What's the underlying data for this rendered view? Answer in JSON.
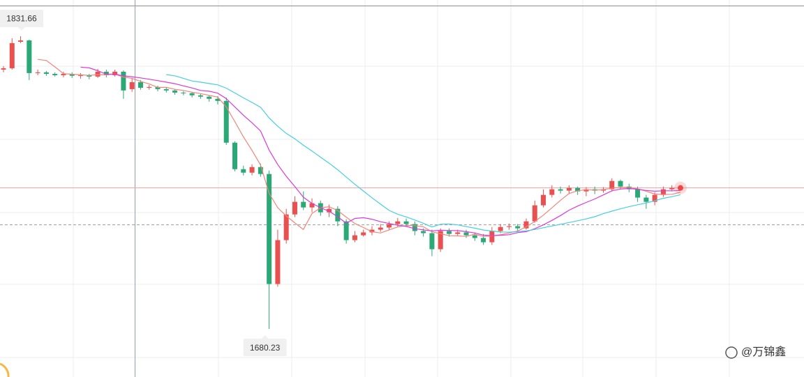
{
  "chart_data": {
    "type": "candlestick",
    "categories": [
      null,
      null,
      null,
      null,
      null,
      null,
      null,
      null,
      null,
      null,
      null,
      null,
      null,
      null,
      null,
      null,
      null,
      null,
      null,
      null,
      null,
      null,
      null,
      null,
      null,
      null,
      null,
      null,
      null,
      null,
      null,
      null,
      null,
      null,
      null,
      null,
      null,
      null,
      null,
      null,
      null,
      null,
      null,
      null,
      null,
      null,
      null,
      null,
      null,
      null,
      null,
      null,
      null,
      null,
      null,
      null,
      null,
      null,
      null,
      null,
      null,
      null,
      null,
      null,
      null,
      null,
      null,
      null,
      null,
      null,
      null,
      null,
      null,
      null,
      null,
      null,
      null,
      null,
      null,
      null
    ],
    "open": [
      1814.4,
      1815.1,
      1828.8,
      1829.5,
      1812.6,
      1813.0,
      1812.2,
      1811.5,
      1812.2,
      1811.2,
      1811.5,
      1810.8,
      1813.3,
      1811.5,
      1813.3,
      1804.3,
      1807.9,
      1805.0,
      1805.4,
      1804.3,
      1803.6,
      1802.5,
      1802.2,
      1801.1,
      1800.4,
      1799.3,
      1798.2,
      1776.6,
      1762.9,
      1761.1,
      1764.0,
      1760.4,
      1703.5,
      1726.2,
      1739.5,
      1746.0,
      1743.1,
      1745.3,
      1740.6,
      1742.4,
      1735.9,
      1726.2,
      1728.7,
      1730.2,
      1731.6,
      1732.7,
      1734.5,
      1735.9,
      1734.5,
      1730.9,
      1729.8,
      1721.5,
      1730.9,
      1729.4,
      1730.2,
      1728.7,
      1727.3,
      1725.1,
      1730.9,
      1733.0,
      1733.4,
      1732.3,
      1735.9,
      1744.2,
      1749.6,
      1752.5,
      1751.8,
      1753.2,
      1751.4,
      1752.5,
      1751.8,
      1752.5,
      1756.8,
      1753.9,
      1752.5,
      1748.2,
      1746.0,
      1749.6,
      1752.5,
      1752.8
    ],
    "high": [
      1816.2,
      1830.6,
      1831.66,
      1829.9,
      1814.4,
      1813.7,
      1813.0,
      1813.3,
      1813.0,
      1812.6,
      1812.2,
      1814.8,
      1814.4,
      1814.4,
      1814.0,
      1810.1,
      1809.0,
      1806.5,
      1806.1,
      1805.0,
      1804.3,
      1803.2,
      1802.9,
      1801.8,
      1801.1,
      1800.7,
      1800.0,
      1777.3,
      1764.7,
      1765.4,
      1765.8,
      1762.2,
      1731.6,
      1742.4,
      1748.9,
      1751.4,
      1747.8,
      1746.7,
      1744.6,
      1743.8,
      1737.0,
      1730.9,
      1731.6,
      1733.4,
      1734.5,
      1735.9,
      1737.7,
      1737.4,
      1735.9,
      1732.3,
      1731.6,
      1732.3,
      1732.3,
      1731.6,
      1731.6,
      1730.2,
      1729.4,
      1733.0,
      1734.5,
      1734.8,
      1734.5,
      1737.4,
      1746.7,
      1752.5,
      1754.6,
      1753.9,
      1754.6,
      1753.9,
      1753.6,
      1753.9,
      1753.6,
      1758.2,
      1757.5,
      1755.4,
      1753.9,
      1749.6,
      1751.0,
      1753.9,
      1754.6,
      1753.9
    ],
    "low": [
      1813.0,
      1814.4,
      1828.1,
      1809.0,
      1811.5,
      1811.2,
      1810.8,
      1810.4,
      1810.1,
      1809.7,
      1809.4,
      1810.1,
      1810.4,
      1810.8,
      1799.3,
      1802.9,
      1804.0,
      1804.0,
      1803.2,
      1802.5,
      1801.4,
      1801.1,
      1800.0,
      1799.3,
      1797.8,
      1796.4,
      1775.5,
      1761.8,
      1759.7,
      1759.7,
      1759.0,
      1680.23,
      1702.1,
      1724.4,
      1738.1,
      1741.7,
      1740.6,
      1738.8,
      1738.1,
      1733.4,
      1724.4,
      1725.1,
      1728.0,
      1728.7,
      1730.5,
      1731.6,
      1733.0,
      1733.0,
      1728.7,
      1728.0,
      1717.9,
      1720.1,
      1728.0,
      1728.4,
      1727.3,
      1725.8,
      1723.7,
      1723.7,
      1729.8,
      1731.6,
      1730.9,
      1731.6,
      1735.2,
      1743.1,
      1748.2,
      1750.3,
      1750.0,
      1749.6,
      1748.9,
      1750.0,
      1750.7,
      1751.4,
      1752.5,
      1751.0,
      1746.0,
      1742.4,
      1744.2,
      1748.5,
      1751.4,
      1752.5
    ],
    "close": [
      1815.1,
      1828.1,
      1829.5,
      1812.6,
      1813.0,
      1812.2,
      1811.5,
      1812.2,
      1811.2,
      1811.5,
      1810.8,
      1813.3,
      1811.5,
      1813.3,
      1803.6,
      1807.9,
      1805.0,
      1805.4,
      1804.3,
      1803.6,
      1802.5,
      1802.2,
      1801.1,
      1800.4,
      1799.3,
      1798.2,
      1776.6,
      1762.9,
      1761.1,
      1764.0,
      1760.4,
      1703.5,
      1726.2,
      1739.5,
      1746.0,
      1743.1,
      1745.3,
      1740.6,
      1742.4,
      1735.9,
      1726.2,
      1728.7,
      1730.2,
      1731.6,
      1732.7,
      1734.5,
      1735.9,
      1734.5,
      1730.9,
      1729.8,
      1721.5,
      1730.9,
      1729.4,
      1730.2,
      1728.7,
      1727.3,
      1725.1,
      1730.9,
      1733.0,
      1733.4,
      1732.3,
      1735.9,
      1744.2,
      1749.6,
      1752.5,
      1751.8,
      1753.2,
      1751.4,
      1752.5,
      1751.8,
      1752.5,
      1756.8,
      1753.9,
      1752.5,
      1748.2,
      1746.0,
      1749.6,
      1752.5,
      1753.2,
      1753.2
    ],
    "up_color": "#e8514f",
    "down_color": "#2aa876",
    "lines": [
      {
        "color": "#f0857a",
        "values": [
          null,
          null,
          null,
          null,
          1819.7,
          1819.1,
          1815.8,
          1812.3,
          1812.0,
          1811.7,
          1811.4,
          1811.8,
          1811.7,
          1812.1,
          1810.5,
          1809.9,
          1808.3,
          1807.0,
          1805.2,
          1805.2,
          1804.2,
          1803.6,
          1802.7,
          1802.0,
          1801.1,
          1800.2,
          1795.1,
          1787.5,
          1779.6,
          1772.6,
          1765.0,
          1750.4,
          1743.0,
          1738.7,
          1735.1,
          1731.7,
          1740.0,
          1742.9,
          1743.5,
          1741.5,
          1738.1,
          1734.8,
          1732.7,
          1730.5,
          1729.9,
          1731.5,
          1733.0,
          1733.8,
          1733.7,
          1733.1,
          1730.5,
          1729.5,
          1728.5,
          1728.4,
          1728.1,
          1729.3,
          1728.1,
          1728.4,
          1729.0,
          1729.9,
          1730.9,
          1733.1,
          1735.8,
          1739.1,
          1742.9,
          1746.8,
          1750.3,
          1751.7,
          1752.3,
          1752.1,
          1752.3,
          1753.0,
          1753.5,
          1753.5,
          1752.8,
          1751.5,
          1750.0,
          1749.8,
          1749.9,
          1750.9
        ]
      },
      {
        "color": "#d93ad9",
        "values": [
          null,
          null,
          null,
          null,
          null,
          null,
          null,
          null,
          null,
          1815.7,
          1815.3,
          1813.8,
          1812.0,
          1812.1,
          1811.1,
          1810.7,
          1810.1,
          1809.4,
          1808.7,
          1807.9,
          1807.1,
          1806.0,
          1804.9,
          1803.6,
          1803.2,
          1802.2,
          1799.4,
          1795.1,
          1790.8,
          1786.9,
          1782.6,
          1772.8,
          1765.3,
          1759.2,
          1753.9,
          1748.4,
          1745.2,
          1743.0,
          1741.1,
          1738.3,
          1734.9,
          1737.4,
          1737.8,
          1737.0,
          1735.7,
          1734.8,
          1733.9,
          1733.3,
          1732.1,
          1731.5,
          1731.0,
          1731.3,
          1731.2,
          1731.1,
          1730.6,
          1729.9,
          1728.8,
          1728.5,
          1728.7,
          1729.0,
          1730.1,
          1730.6,
          1732.1,
          1734.1,
          1736.4,
          1738.9,
          1741.7,
          1743.8,
          1745.7,
          1747.5,
          1749.6,
          1751.7,
          1752.6,
          1752.9,
          1752.5,
          1751.9,
          1751.5,
          1751.7,
          1751.7,
          1751.9
        ]
      },
      {
        "color": "#45cfe0",
        "values": [
          null,
          null,
          null,
          null,
          null,
          null,
          null,
          null,
          null,
          null,
          null,
          null,
          null,
          null,
          null,
          null,
          null,
          null,
          null,
          1811.8,
          1811.2,
          1809.9,
          1808.5,
          1807.9,
          1807.2,
          1806.5,
          1804.8,
          1802.3,
          1799.8,
          1797.4,
          1794.9,
          1789.4,
          1785.1,
          1781.4,
          1778.6,
          1775.3,
          1772.3,
          1769.1,
          1766.0,
          1762.6,
          1758.8,
          1755.1,
          1751.6,
          1748.1,
          1744.8,
          1741.6,
          1739.6,
          1738.2,
          1736.6,
          1734.9,
          1733.0,
          1734.4,
          1734.5,
          1734.1,
          1733.2,
          1732.4,
          1731.4,
          1730.9,
          1730.4,
          1730.3,
          1730.6,
          1731.0,
          1731.7,
          1732.6,
          1733.5,
          1734.4,
          1735.3,
          1736.2,
          1737.2,
          1738.3,
          1739.9,
          1741.2,
          1742.4,
          1743.5,
          1744.5,
          1745.4,
          1746.6,
          1747.8,
          1748.7,
          1749.7
        ]
      }
    ],
    "reference_line": 1734.1,
    "ylim": [
      1655.4,
      1850.4
    ],
    "watermark": "@万锦鑫"
  }
}
